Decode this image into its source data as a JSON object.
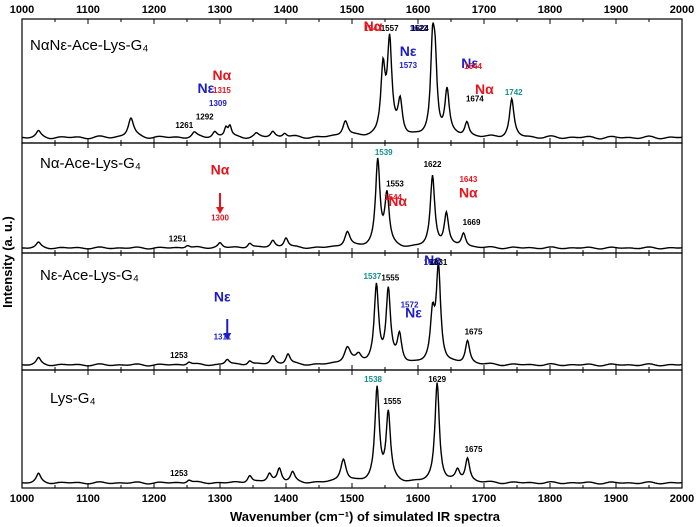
{
  "chart_data": {
    "type": "line",
    "xlabel": "Wavenumber (cm⁻¹) of simulated IR spectra",
    "ylabel": "Intensity (a. u.)",
    "xlim": [
      1000,
      2000
    ],
    "x_ticks": [
      1000,
      1100,
      1200,
      1300,
      1400,
      1500,
      1600,
      1700,
      1800,
      1900,
      2000
    ],
    "grid": false,
    "colors": {
      "black": "#000000",
      "red": "#e8141c",
      "blue": "#1c1cc8",
      "teal": "#14908c"
    },
    "panels": [
      {
        "label": "NαNε-Ace-Lys-G₄",
        "baseline": 0.07,
        "noise": 0.025,
        "peaks": [
          {
            "x": 1025,
            "h": 0.05,
            "w": 4
          },
          {
            "x": 1165,
            "h": 0.17,
            "w": 5
          },
          {
            "x": 1261,
            "h": 0.04,
            "w": 4
          },
          {
            "x": 1292,
            "h": 0.05,
            "w": 4
          },
          {
            "x": 1309,
            "h": 0.08,
            "w": 3
          },
          {
            "x": 1315,
            "h": 0.09,
            "w": 3
          },
          {
            "x": 1355,
            "h": 0.03,
            "w": 4
          },
          {
            "x": 1380,
            "h": 0.05,
            "w": 4
          },
          {
            "x": 1398,
            "h": 0.04,
            "w": 4
          },
          {
            "x": 1490,
            "h": 0.15,
            "w": 5
          },
          {
            "x": 1547,
            "h": 0.58,
            "w": 4
          },
          {
            "x": 1557,
            "h": 0.8,
            "w": 4
          },
          {
            "x": 1573,
            "h": 0.3,
            "w": 4
          },
          {
            "x": 1622,
            "h": 0.72,
            "w": 3.5
          },
          {
            "x": 1626,
            "h": 0.55,
            "w": 3.5
          },
          {
            "x": 1644,
            "h": 0.4,
            "w": 4
          },
          {
            "x": 1674,
            "h": 0.13,
            "w": 4
          },
          {
            "x": 1742,
            "h": 0.33,
            "w": 4
          }
        ],
        "annotations": [
          {
            "text": "1261",
            "x": 1261,
            "size": 8,
            "color": "black",
            "bold": true
          },
          {
            "text": "1292",
            "x": 1292,
            "size": 8,
            "color": "black",
            "bold": true
          },
          {
            "text": "Nε",
            "x": 1309,
            "size": 14,
            "color": "blue",
            "bold": true
          },
          {
            "text": "1309",
            "x": 1309,
            "size": 8,
            "color": "blue",
            "bold": true
          },
          {
            "text": "Nα",
            "x": 1315,
            "size": 14,
            "color": "red",
            "bold": true
          },
          {
            "text": "1315",
            "x": 1315,
            "size": 8,
            "color": "red",
            "bold": true
          },
          {
            "text": "1557",
            "x": 1557,
            "size": 8,
            "color": "black",
            "bold": true
          },
          {
            "text": "Nα",
            "x": 1547,
            "size": 14,
            "color": "red",
            "bold": true
          },
          {
            "text": "1547",
            "x": 1547,
            "size": 8,
            "color": "red",
            "bold": true
          },
          {
            "text": "Nε",
            "x": 1573,
            "size": 14,
            "color": "blue",
            "bold": true
          },
          {
            "text": "1573",
            "x": 1573,
            "size": 8,
            "color": "blue",
            "bold": true
          },
          {
            "text": "1622",
            "x": 1622,
            "size": 8,
            "color": "blue",
            "bold": true
          },
          {
            "text": "1624",
            "x": 1624,
            "size": 8,
            "color": "black",
            "bold": true
          },
          {
            "text": "Nε",
            "x": 1648,
            "size": 14,
            "color": "blue",
            "bold": true
          },
          {
            "text": "Nα",
            "x": 1652,
            "size": 14,
            "color": "red",
            "bold": true
          },
          {
            "text": "1644",
            "x": 1644,
            "size": 8,
            "color": "red",
            "bold": true
          },
          {
            "text": "1674",
            "x": 1674,
            "size": 8,
            "color": "black",
            "bold": true
          },
          {
            "text": "1742",
            "x": 1742,
            "size": 8,
            "color": "teal",
            "bold": true
          }
        ]
      },
      {
        "label": "Nα-Ace-Lys-G₄",
        "baseline": 0.07,
        "noise": 0.02,
        "peaks": [
          {
            "x": 1025,
            "h": 0.05,
            "w": 4
          },
          {
            "x": 1251,
            "h": 0.03,
            "w": 4
          },
          {
            "x": 1300,
            "h": 0.05,
            "w": 4
          },
          {
            "x": 1345,
            "h": 0.05,
            "w": 4
          },
          {
            "x": 1380,
            "h": 0.07,
            "w": 4
          },
          {
            "x": 1400,
            "h": 0.1,
            "w": 4
          },
          {
            "x": 1493,
            "h": 0.16,
            "w": 5
          },
          {
            "x": 1539,
            "h": 0.85,
            "w": 4
          },
          {
            "x": 1553,
            "h": 0.5,
            "w": 4
          },
          {
            "x": 1622,
            "h": 0.7,
            "w": 4
          },
          {
            "x": 1643,
            "h": 0.33,
            "w": 4
          },
          {
            "x": 1669,
            "h": 0.14,
            "w": 4
          }
        ],
        "annotations": [
          {
            "text": "1251",
            "x": 1251,
            "size": 8,
            "color": "black",
            "bold": true
          },
          {
            "text": "Nα",
            "x": 1300,
            "size": 14,
            "color": "red",
            "bold": true
          },
          {
            "text": "1300",
            "x": 1300,
            "size": 8,
            "color": "red",
            "bold": true
          },
          {
            "text": "1539",
            "x": 1539,
            "size": 8,
            "color": "teal",
            "bold": true
          },
          {
            "text": "Nα",
            "x": 1548,
            "size": 14,
            "color": "red",
            "bold": true
          },
          {
            "text": "1544",
            "x": 1544,
            "size": 8,
            "color": "red",
            "bold": true
          },
          {
            "text": "1553",
            "x": 1553,
            "size": 8,
            "color": "black",
            "bold": true
          },
          {
            "text": "1622",
            "x": 1622,
            "size": 8,
            "color": "black",
            "bold": true
          },
          {
            "text": "Nα",
            "x": 1655,
            "size": 14,
            "color": "red",
            "bold": true
          },
          {
            "text": "1643",
            "x": 1643,
            "size": 8,
            "color": "red",
            "bold": true
          },
          {
            "text": "1669",
            "x": 1669,
            "size": 8,
            "color": "black",
            "bold": true
          }
        ]
      },
      {
        "label": "Nε-Ace-Lys-G₄",
        "baseline": 0.07,
        "noise": 0.02,
        "peaks": [
          {
            "x": 1025,
            "h": 0.06,
            "w": 4
          },
          {
            "x": 1253,
            "h": 0.03,
            "w": 4
          },
          {
            "x": 1311,
            "h": 0.05,
            "w": 4
          },
          {
            "x": 1345,
            "h": 0.04,
            "w": 4
          },
          {
            "x": 1380,
            "h": 0.08,
            "w": 4
          },
          {
            "x": 1403,
            "h": 0.1,
            "w": 4
          },
          {
            "x": 1493,
            "h": 0.16,
            "w": 6
          },
          {
            "x": 1510,
            "h": 0.07,
            "w": 5
          },
          {
            "x": 1537,
            "h": 0.72,
            "w": 4
          },
          {
            "x": 1555,
            "h": 0.67,
            "w": 4
          },
          {
            "x": 1572,
            "h": 0.26,
            "w": 4
          },
          {
            "x": 1622,
            "h": 0.42,
            "w": 4
          },
          {
            "x": 1631,
            "h": 0.88,
            "w": 4
          },
          {
            "x": 1675,
            "h": 0.22,
            "w": 4
          }
        ],
        "annotations": [
          {
            "text": "1253",
            "x": 1253,
            "size": 8,
            "color": "black",
            "bold": true
          },
          {
            "text": "Nε",
            "x": 1311,
            "size": 14,
            "color": "blue",
            "bold": true
          },
          {
            "text": "1311",
            "x": 1311,
            "size": 8,
            "color": "blue",
            "bold": true
          },
          {
            "text": "1537",
            "x": 1537,
            "size": 8,
            "color": "teal",
            "bold": true
          },
          {
            "text": "1555",
            "x": 1555,
            "size": 8,
            "color": "black",
            "bold": true
          },
          {
            "text": "Nε",
            "x": 1578,
            "size": 14,
            "color": "blue",
            "bold": true
          },
          {
            "text": "1572",
            "x": 1572,
            "size": 8,
            "color": "blue",
            "bold": true
          },
          {
            "text": "Nε",
            "x": 1622,
            "size": 14,
            "color": "blue",
            "bold": true
          },
          {
            "text": "1622",
            "x": 1622,
            "size": 8,
            "color": "blue",
            "bold": true
          },
          {
            "text": "1631",
            "x": 1631,
            "size": 8,
            "color": "black",
            "bold": true
          },
          {
            "text": "1675",
            "x": 1675,
            "size": 8,
            "color": "black",
            "bold": true
          }
        ]
      },
      {
        "label": "Lys-G₄",
        "baseline": 0.07,
        "noise": 0.02,
        "peaks": [
          {
            "x": 1025,
            "h": 0.08,
            "w": 4
          },
          {
            "x": 1253,
            "h": 0.03,
            "w": 4
          },
          {
            "x": 1345,
            "h": 0.07,
            "w": 4
          },
          {
            "x": 1375,
            "h": 0.08,
            "w": 4
          },
          {
            "x": 1390,
            "h": 0.13,
            "w": 4
          },
          {
            "x": 1410,
            "h": 0.09,
            "w": 4
          },
          {
            "x": 1487,
            "h": 0.22,
            "w": 5
          },
          {
            "x": 1538,
            "h": 0.86,
            "w": 4
          },
          {
            "x": 1555,
            "h": 0.62,
            "w": 4
          },
          {
            "x": 1629,
            "h": 0.92,
            "w": 4
          },
          {
            "x": 1660,
            "h": 0.1,
            "w": 4
          },
          {
            "x": 1675,
            "h": 0.22,
            "w": 4
          }
        ],
        "annotations": [
          {
            "text": "1253",
            "x": 1253,
            "size": 8,
            "color": "black",
            "bold": true
          },
          {
            "text": "1538",
            "x": 1538,
            "size": 8,
            "color": "teal",
            "bold": true
          },
          {
            "text": "1555",
            "x": 1555,
            "size": 8,
            "color": "black",
            "bold": true
          },
          {
            "text": "1629",
            "x": 1629,
            "size": 8,
            "color": "black",
            "bold": true
          },
          {
            "text": "1675",
            "x": 1675,
            "size": 8,
            "color": "black",
            "bold": true
          }
        ]
      }
    ]
  }
}
